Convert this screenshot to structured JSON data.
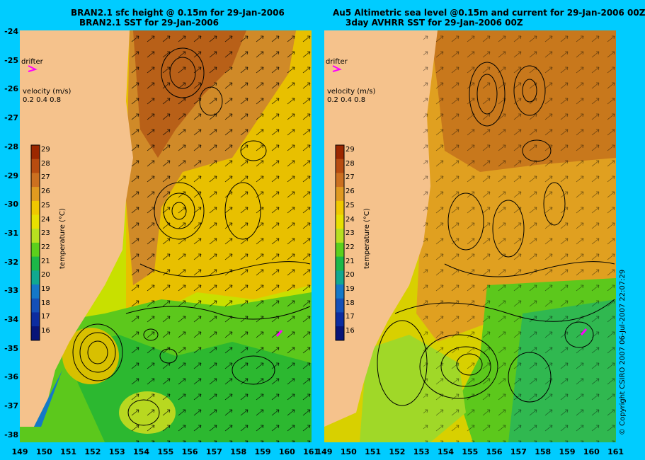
{
  "left_panel": {
    "title_line1": "BRAN2.1 sfc height @ 0.15m for 29-Jan-2006",
    "title_line2": "BRAN2.1 SST for 29-Jan-2006"
  },
  "right_panel": {
    "title_line1": "Au5 Altimetric sea level  @0.15m and current for 29-Jan-2006 00Z",
    "title_line2": "3day AVHRR SST for 29-Jan-2006 00Z"
  },
  "drifter_label": "drifter",
  "velocity": {
    "title": "velocity (m/s)",
    "ticks": "0.2 0.4 0.8"
  },
  "colorbar": {
    "label": "temperature (°C)",
    "ticks": [
      "29",
      "28",
      "27",
      "26",
      "25",
      "24",
      "23",
      "22",
      "21",
      "20",
      "19",
      "18",
      "17",
      "16"
    ],
    "colors": [
      "#9c2800",
      "#b84c10",
      "#cc7020",
      "#e09a20",
      "#f0c800",
      "#e8e000",
      "#b8e020",
      "#5cd01c",
      "#1cb848",
      "#10a890",
      "#1478c8",
      "#1450b8",
      "#0c2ca0",
      "#081478"
    ]
  },
  "y_axis_ticks": [
    "-24",
    "-25",
    "-26",
    "-27",
    "-28",
    "-29",
    "-30",
    "-31",
    "-32",
    "-33",
    "-34",
    "-35",
    "-36",
    "-37",
    "-38"
  ],
  "x_axis_ticks": [
    "149",
    "150",
    "151",
    "152",
    "153",
    "154",
    "155",
    "156",
    "157",
    "158",
    "159",
    "160",
    "161"
  ],
  "copyright": "© Copyright CSIRO 2007  06-Jul-2007 22:07:29",
  "colors": {
    "background": "#00ccff",
    "land": "#f5c28c",
    "drifter": "#ff00ff"
  }
}
